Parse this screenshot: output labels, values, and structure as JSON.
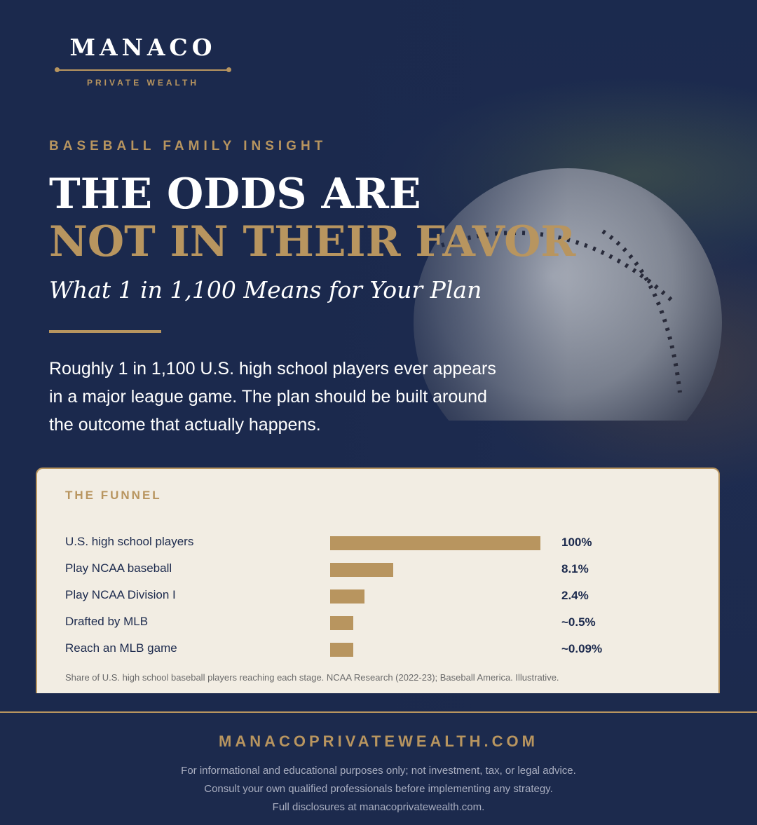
{
  "brand": {
    "name": "MANACO",
    "tagline": "PRIVATE WEALTH"
  },
  "hero": {
    "eyebrow": "BASEBALL FAMILY INSIGHT",
    "headline_line1": "THE ODDS ARE",
    "headline_line2": "NOT IN THEIR FAVOR",
    "subhead": "What 1 in 1,100 Means for Your Plan",
    "intro": "Roughly 1 in 1,100 U.S. high school players ever appears in a major league game. The plan should be built around the outcome that actually happens."
  },
  "funnel": {
    "title": "THE FUNNEL",
    "rows": [
      {
        "label": "U.S. high school players",
        "value_text": "100%",
        "value": 100
      },
      {
        "label": "Play NCAA baseball",
        "value_text": "8.1%",
        "value": 8.1
      },
      {
        "label": "Play NCAA Division I",
        "value_text": "2.4%",
        "value": 2.4
      },
      {
        "label": "Drafted by MLB",
        "value_text": "~0.5%",
        "value": 0.5
      },
      {
        "label": "Reach an MLB game",
        "value_text": "~0.09%",
        "value": 0.09
      }
    ],
    "note": "Share of U.S. high school baseball players reaching each stage. NCAA Research (2022-23); Baseball America. Illustrative."
  },
  "footer": {
    "site": "MANACOPRIVATEWEALTH.COM",
    "lines": [
      "For informational and educational purposes only; not investment, tax, or legal advice.",
      "Consult your own qualified professionals before implementing any strategy.",
      "Full disclosures at manacoprivatewealth.com."
    ]
  },
  "colors": {
    "navy": "#1c2a4d",
    "gold": "#b8955f",
    "cream": "#f2ede3"
  }
}
